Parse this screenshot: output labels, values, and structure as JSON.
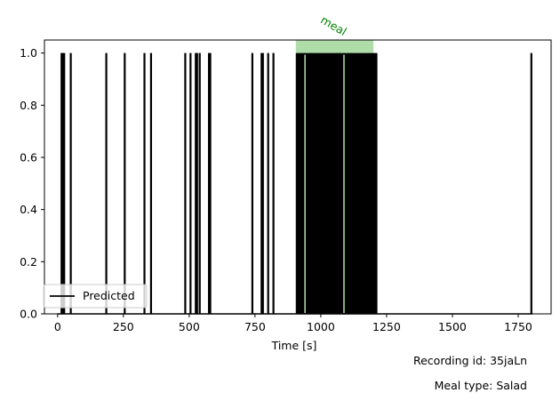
{
  "chart_data": {
    "type": "line",
    "title": "",
    "xlabel": "Time [s]",
    "ylabel": "",
    "xlim": [
      -50,
      1875
    ],
    "ylim": [
      0,
      1.05
    ],
    "x_ticks": [
      0,
      250,
      500,
      750,
      1000,
      1250,
      1500,
      1750
    ],
    "y_ticks": [
      0.0,
      0.2,
      0.4,
      0.6,
      0.8,
      1.0
    ],
    "x_tick_labels": [
      "0",
      "250",
      "500",
      "750",
      "1000",
      "1250",
      "1500",
      "1750"
    ],
    "y_tick_labels": [
      "0.0",
      "0.2",
      "0.4",
      "0.6",
      "0.8",
      "1.0"
    ],
    "grid": false,
    "legend_position": "lower-left",
    "series": [
      {
        "name": "Predicted",
        "color": "#000000",
        "pulses_value_1": [
          15,
          20,
          25,
          50,
          185,
          255,
          330,
          355,
          485,
          505,
          525,
          530,
          540,
          575,
          580,
          740,
          775,
          780,
          800,
          820,
          1800
        ],
        "dense_region": [
          905,
          1215
        ],
        "dense_gaps": [
          940,
          1088
        ]
      }
    ],
    "annotations": [
      {
        "label": "meal",
        "type": "span",
        "x_start": 905,
        "x_end": 1200,
        "color": "#a6d8a0",
        "text_color": "#008000"
      }
    ]
  },
  "captions": {
    "recording": "Recording id: 35jaLn",
    "meal_type": "Meal type: Salad"
  }
}
